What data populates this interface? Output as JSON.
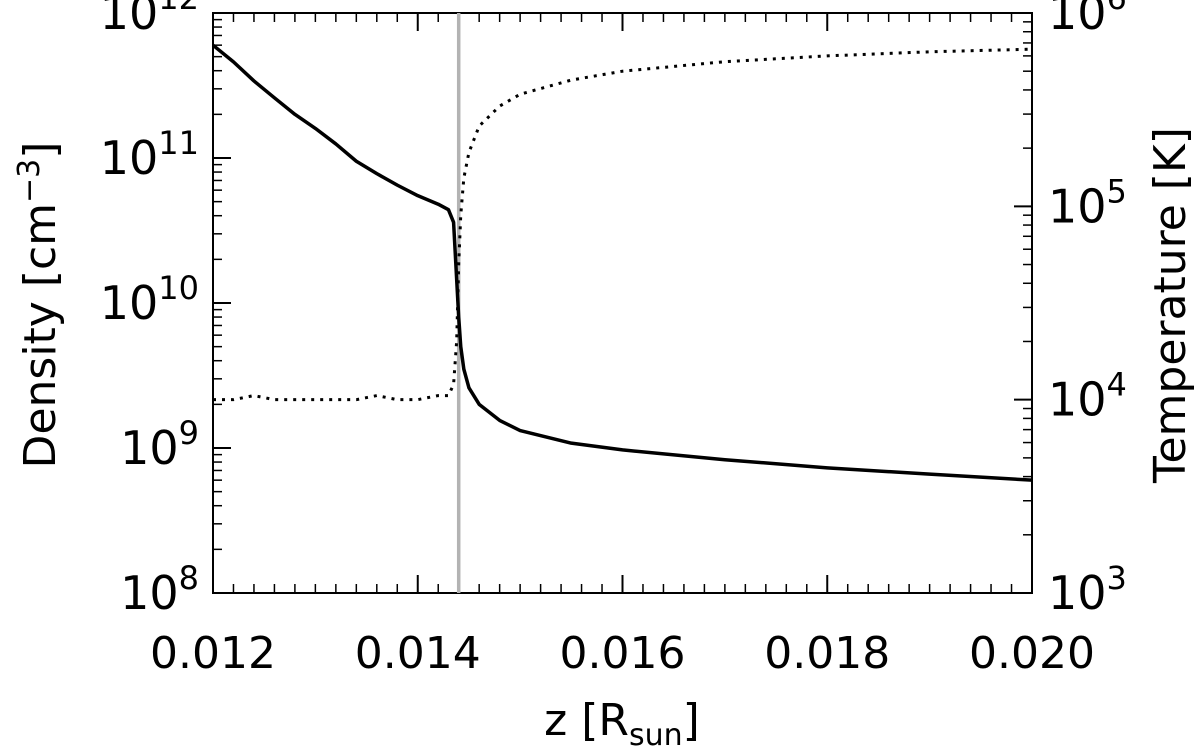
{
  "chart_data": {
    "type": "line",
    "xlabel": {
      "base": "z [R",
      "sub": "sun",
      "close": "]"
    },
    "ylabel_left": {
      "text": "Density [cm",
      "sup": "−3",
      "close": "]"
    },
    "ylabel_right": "Temperature [K]",
    "xlim": [
      0.012,
      0.02
    ],
    "ylim_left": [
      100000000.0,
      1000000000000.0
    ],
    "ylim_right": [
      1000.0,
      1000000.0
    ],
    "yscale_left": "log",
    "yscale_right": "log",
    "x_ticks": [
      "0.012",
      "0.014",
      "0.016",
      "0.018",
      "0.020"
    ],
    "y_ticks_left": [
      {
        "base": "10",
        "exp": "8"
      },
      {
        "base": "10",
        "exp": "9"
      },
      {
        "base": "10",
        "exp": "10"
      },
      {
        "base": "10",
        "exp": "11"
      },
      {
        "base": "10",
        "exp": "12"
      }
    ],
    "y_ticks_right": [
      {
        "base": "10",
        "exp": "3"
      },
      {
        "base": "10",
        "exp": "4"
      },
      {
        "base": "10",
        "exp": "5"
      },
      {
        "base": "10",
        "exp": "6"
      }
    ],
    "vline": {
      "x": 0.0144,
      "color": "#b3b3b3"
    },
    "grid": false,
    "series": [
      {
        "axis": "left",
        "style": "solid",
        "x": [
          0.012,
          0.0122,
          0.0124,
          0.0126,
          0.0128,
          0.013,
          0.0132,
          0.0134,
          0.0136,
          0.0138,
          0.014,
          0.0142,
          0.0143,
          0.01435,
          0.0144,
          0.01442,
          0.01445,
          0.0145,
          0.0146,
          0.0148,
          0.015,
          0.0155,
          0.016,
          0.017,
          0.018,
          0.019,
          0.02
        ],
        "y": [
          600000000000.0,
          460000000000.0,
          340000000000.0,
          260000000000.0,
          200000000000.0,
          160000000000.0,
          125000000000.0,
          95000000000.0,
          78000000000.0,
          65000000000.0,
          55000000000.0,
          48000000000.0,
          44000000000.0,
          36000000000.0,
          8000000000.0,
          5000000000.0,
          3500000000.0,
          2600000000.0,
          2000000000.0,
          1550000000.0,
          1320000000.0,
          1080000000.0,
          970000000.0,
          830000000.0,
          730000000.0,
          660000000.0,
          600000000.0
        ]
      },
      {
        "axis": "right",
        "style": "dotted",
        "x": [
          0.012,
          0.0122,
          0.0124,
          0.0126,
          0.0128,
          0.013,
          0.0132,
          0.0134,
          0.0136,
          0.0138,
          0.014,
          0.0142,
          0.0143,
          0.01435,
          0.01438,
          0.0144,
          0.01442,
          0.01445,
          0.0145,
          0.0146,
          0.0148,
          0.015,
          0.0155,
          0.016,
          0.017,
          0.018,
          0.019,
          0.02
        ],
        "y": [
          10000.0,
          10000.0,
          10500.0,
          10000.0,
          10000.0,
          10000.0,
          10000.0,
          10000.0,
          10500.0,
          10000.0,
          10000.0,
          10500.0,
          10500.0,
          12000.0,
          20000.0,
          50000.0,
          90000.0,
          140000.0,
          190000.0,
          260000.0,
          330000.0,
          380000.0,
          450000.0,
          500000.0,
          560000.0,
          600000.0,
          630000.0,
          650000.0
        ]
      }
    ]
  }
}
